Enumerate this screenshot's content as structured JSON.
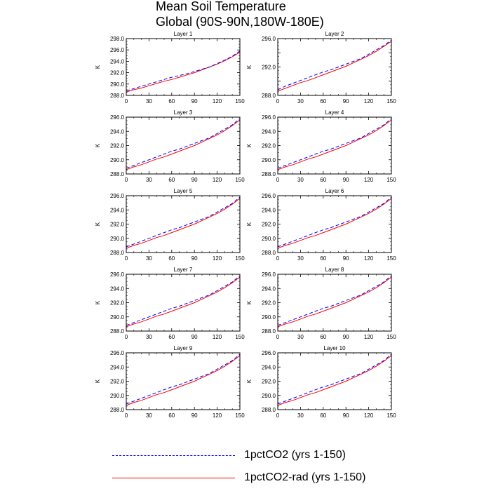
{
  "title": {
    "line1": "Mean Soil Temperature",
    "line2": "Global (90S-90N,180W-180E)"
  },
  "legend": [
    {
      "label": "1pctCO2 (yrs 1-150)",
      "color": "#0000ff",
      "style": "dashed"
    },
    {
      "label": "1pctCO2-rad (yrs 1-150)",
      "color": "#ff0000",
      "style": "solid"
    }
  ],
  "chart_data": [
    {
      "type": "line",
      "title": "Layer 1",
      "ylabel": "K",
      "xlim": [
        0,
        150
      ],
      "ylim": [
        288.0,
        298.0
      ],
      "xticks": [
        "0",
        "30",
        "60",
        "90",
        "120",
        "150"
      ],
      "yticks": [
        "288.0",
        "290.0",
        "292.0",
        "294.0",
        "296.0",
        "298.0"
      ],
      "x": [
        0,
        10,
        20,
        30,
        40,
        50,
        60,
        70,
        80,
        90,
        100,
        110,
        120,
        130,
        140,
        150
      ],
      "series": [
        {
          "name": "1pctCO2 (yrs 1-150)",
          "values": [
            288.8,
            289.2,
            289.6,
            290.0,
            290.4,
            290.8,
            291.2,
            291.5,
            291.8,
            292.2,
            292.6,
            293.0,
            293.6,
            294.2,
            294.9,
            295.8
          ]
        },
        {
          "name": "1pctCO2-rad (yrs 1-150)",
          "values": [
            288.6,
            289.0,
            289.3,
            289.7,
            290.1,
            290.5,
            290.8,
            291.2,
            291.6,
            292.0,
            292.5,
            293.0,
            293.5,
            294.1,
            294.8,
            295.6
          ]
        }
      ]
    },
    {
      "type": "line",
      "title": "Layer 2",
      "ylabel": "K",
      "xlim": [
        0,
        150
      ],
      "ylim": [
        288.0,
        296.0
      ],
      "xticks": [
        "0",
        "30",
        "60",
        "90",
        "120",
        "150"
      ],
      "yticks": [
        "288.0",
        "292.0",
        "296.0"
      ],
      "minor_yticks": [
        290.0,
        294.0
      ],
      "x": [
        0,
        10,
        20,
        30,
        40,
        50,
        60,
        70,
        80,
        90,
        100,
        110,
        120,
        130,
        140,
        150
      ],
      "series": [
        {
          "name": "1pctCO2 (yrs 1-150)",
          "values": [
            288.8,
            289.3,
            289.7,
            290.1,
            290.5,
            290.9,
            291.3,
            291.6,
            292.0,
            292.4,
            292.8,
            293.2,
            293.8,
            294.4,
            295.0,
            295.8
          ]
        },
        {
          "name": "1pctCO2-rad (yrs 1-150)",
          "values": [
            288.6,
            289.0,
            289.4,
            289.8,
            290.1,
            290.5,
            290.9,
            291.3,
            291.7,
            292.1,
            292.6,
            293.1,
            293.6,
            294.2,
            294.9,
            295.6
          ]
        }
      ]
    },
    {
      "type": "line",
      "title": "Layer 3",
      "ylabel": "K",
      "xlim": [
        0,
        150
      ],
      "ylim": [
        288.0,
        296.0
      ],
      "xticks": [
        "0",
        "30",
        "60",
        "90",
        "120",
        "150"
      ],
      "yticks": [
        "288.0",
        "290.0",
        "292.0",
        "294.0",
        "296.0"
      ],
      "x": [
        0,
        10,
        20,
        30,
        40,
        50,
        60,
        70,
        80,
        90,
        100,
        110,
        120,
        130,
        140,
        150
      ],
      "series": [
        {
          "name": "1pctCO2 (yrs 1-150)",
          "values": [
            288.8,
            289.2,
            289.6,
            290.0,
            290.4,
            290.8,
            291.2,
            291.5,
            291.9,
            292.3,
            292.7,
            293.1,
            293.7,
            294.3,
            294.9,
            295.8
          ]
        },
        {
          "name": "1pctCO2-rad (yrs 1-150)",
          "values": [
            288.6,
            289.0,
            289.3,
            289.7,
            290.1,
            290.4,
            290.8,
            291.2,
            291.6,
            292.0,
            292.5,
            293.0,
            293.5,
            294.1,
            294.8,
            295.6
          ]
        }
      ]
    },
    {
      "type": "line",
      "title": "Layer 4",
      "ylabel": "K",
      "xlim": [
        0,
        150
      ],
      "ylim": [
        288.0,
        296.0
      ],
      "xticks": [
        "0",
        "30",
        "60",
        "90",
        "120",
        "150"
      ],
      "yticks": [
        "288.0",
        "290.0",
        "292.0",
        "294.0",
        "296.0"
      ],
      "x": [
        0,
        10,
        20,
        30,
        40,
        50,
        60,
        70,
        80,
        90,
        100,
        110,
        120,
        130,
        140,
        150
      ],
      "series": [
        {
          "name": "1pctCO2 (yrs 1-150)",
          "values": [
            288.8,
            289.2,
            289.6,
            290.0,
            290.4,
            290.8,
            291.2,
            291.5,
            291.9,
            292.3,
            292.7,
            293.1,
            293.7,
            294.3,
            294.9,
            295.8
          ]
        },
        {
          "name": "1pctCO2-rad (yrs 1-150)",
          "values": [
            288.6,
            289.0,
            289.3,
            289.7,
            290.1,
            290.4,
            290.8,
            291.2,
            291.6,
            292.0,
            292.5,
            293.0,
            293.5,
            294.1,
            294.8,
            295.6
          ]
        }
      ]
    },
    {
      "type": "line",
      "title": "Layer 5",
      "ylabel": "K",
      "xlim": [
        0,
        150
      ],
      "ylim": [
        288.0,
        296.0
      ],
      "xticks": [
        "0",
        "30",
        "60",
        "90",
        "120",
        "150"
      ],
      "yticks": [
        "288.0",
        "290.0",
        "292.0",
        "294.0",
        "296.0"
      ],
      "x": [
        0,
        10,
        20,
        30,
        40,
        50,
        60,
        70,
        80,
        90,
        100,
        110,
        120,
        130,
        140,
        150
      ],
      "series": [
        {
          "name": "1pctCO2 (yrs 1-150)",
          "values": [
            288.8,
            289.2,
            289.6,
            290.0,
            290.4,
            290.8,
            291.2,
            291.5,
            291.9,
            292.3,
            292.7,
            293.1,
            293.7,
            294.3,
            294.9,
            295.8
          ]
        },
        {
          "name": "1pctCO2-rad (yrs 1-150)",
          "values": [
            288.6,
            289.0,
            289.3,
            289.7,
            290.1,
            290.4,
            290.8,
            291.2,
            291.6,
            292.0,
            292.5,
            293.0,
            293.5,
            294.1,
            294.8,
            295.6
          ]
        }
      ]
    },
    {
      "type": "line",
      "title": "Layer 6",
      "ylabel": "K",
      "xlim": [
        0,
        150
      ],
      "ylim": [
        288.0,
        296.0
      ],
      "xticks": [
        "0",
        "30",
        "60",
        "90",
        "120",
        "150"
      ],
      "yticks": [
        "288.0",
        "290.0",
        "292.0",
        "294.0",
        "296.0"
      ],
      "x": [
        0,
        10,
        20,
        30,
        40,
        50,
        60,
        70,
        80,
        90,
        100,
        110,
        120,
        130,
        140,
        150
      ],
      "series": [
        {
          "name": "1pctCO2 (yrs 1-150)",
          "values": [
            288.8,
            289.2,
            289.6,
            290.0,
            290.4,
            290.8,
            291.2,
            291.5,
            291.9,
            292.3,
            292.7,
            293.1,
            293.7,
            294.3,
            294.9,
            295.8
          ]
        },
        {
          "name": "1pctCO2-rad (yrs 1-150)",
          "values": [
            288.6,
            289.0,
            289.3,
            289.7,
            290.1,
            290.4,
            290.8,
            291.2,
            291.6,
            292.0,
            292.5,
            293.0,
            293.5,
            294.1,
            294.8,
            295.6
          ]
        }
      ]
    },
    {
      "type": "line",
      "title": "Layer 7",
      "ylabel": "K",
      "xlim": [
        0,
        150
      ],
      "ylim": [
        288.0,
        296.0
      ],
      "xticks": [
        "0",
        "30",
        "60",
        "90",
        "120",
        "150"
      ],
      "yticks": [
        "288.0",
        "290.0",
        "292.0",
        "294.0",
        "296.0"
      ],
      "x": [
        0,
        10,
        20,
        30,
        40,
        50,
        60,
        70,
        80,
        90,
        100,
        110,
        120,
        130,
        140,
        150
      ],
      "series": [
        {
          "name": "1pctCO2 (yrs 1-150)",
          "values": [
            288.8,
            289.2,
            289.6,
            290.0,
            290.4,
            290.8,
            291.2,
            291.5,
            291.9,
            292.3,
            292.7,
            293.1,
            293.7,
            294.3,
            294.9,
            295.8
          ]
        },
        {
          "name": "1pctCO2-rad (yrs 1-150)",
          "values": [
            288.6,
            289.0,
            289.3,
            289.7,
            290.1,
            290.4,
            290.8,
            291.2,
            291.6,
            292.0,
            292.5,
            293.0,
            293.5,
            294.1,
            294.8,
            295.6
          ]
        }
      ]
    },
    {
      "type": "line",
      "title": "Layer 8",
      "ylabel": "K",
      "xlim": [
        0,
        150
      ],
      "ylim": [
        288.0,
        296.0
      ],
      "xticks": [
        "0",
        "30",
        "60",
        "90",
        "120",
        "150"
      ],
      "yticks": [
        "288.0",
        "290.0",
        "292.0",
        "294.0",
        "296.0"
      ],
      "x": [
        0,
        10,
        20,
        30,
        40,
        50,
        60,
        70,
        80,
        90,
        100,
        110,
        120,
        130,
        140,
        150
      ],
      "series": [
        {
          "name": "1pctCO2 (yrs 1-150)",
          "values": [
            288.8,
            289.2,
            289.6,
            290.0,
            290.4,
            290.8,
            291.2,
            291.5,
            291.9,
            292.3,
            292.7,
            293.1,
            293.7,
            294.3,
            294.9,
            295.8
          ]
        },
        {
          "name": "1pctCO2-rad (yrs 1-150)",
          "values": [
            288.6,
            289.0,
            289.3,
            289.7,
            290.1,
            290.4,
            290.8,
            291.2,
            291.6,
            292.0,
            292.5,
            293.0,
            293.5,
            294.1,
            294.8,
            295.6
          ]
        }
      ]
    },
    {
      "type": "line",
      "title": "Layer 9",
      "ylabel": "K",
      "xlim": [
        0,
        150
      ],
      "ylim": [
        288.0,
        296.0
      ],
      "xticks": [
        "0",
        "30",
        "60",
        "90",
        "120",
        "150"
      ],
      "yticks": [
        "288.0",
        "290.0",
        "292.0",
        "294.0",
        "296.0"
      ],
      "x": [
        0,
        10,
        20,
        30,
        40,
        50,
        60,
        70,
        80,
        90,
        100,
        110,
        120,
        130,
        140,
        150
      ],
      "series": [
        {
          "name": "1pctCO2 (yrs 1-150)",
          "values": [
            288.8,
            289.2,
            289.6,
            290.0,
            290.4,
            290.8,
            291.2,
            291.5,
            291.9,
            292.3,
            292.7,
            293.1,
            293.7,
            294.3,
            294.9,
            295.8
          ]
        },
        {
          "name": "1pctCO2-rad (yrs 1-150)",
          "values": [
            288.6,
            289.0,
            289.3,
            289.7,
            290.1,
            290.4,
            290.8,
            291.2,
            291.6,
            292.0,
            292.5,
            293.0,
            293.5,
            294.1,
            294.8,
            295.6
          ]
        }
      ]
    },
    {
      "type": "line",
      "title": "Layer 10",
      "ylabel": "K",
      "xlim": [
        0,
        150
      ],
      "ylim": [
        288.0,
        296.0
      ],
      "xticks": [
        "0",
        "30",
        "60",
        "90",
        "120",
        "150"
      ],
      "yticks": [
        "288.0",
        "290.0",
        "292.0",
        "294.0",
        "296.0"
      ],
      "x": [
        0,
        10,
        20,
        30,
        40,
        50,
        60,
        70,
        80,
        90,
        100,
        110,
        120,
        130,
        140,
        150
      ],
      "series": [
        {
          "name": "1pctCO2 (yrs 1-150)",
          "values": [
            288.8,
            289.2,
            289.6,
            290.0,
            290.4,
            290.8,
            291.2,
            291.5,
            291.9,
            292.3,
            292.7,
            293.1,
            293.7,
            294.3,
            294.9,
            295.8
          ]
        },
        {
          "name": "1pctCO2-rad (yrs 1-150)",
          "values": [
            288.6,
            289.0,
            289.3,
            289.7,
            290.1,
            290.4,
            290.8,
            291.2,
            291.6,
            292.0,
            292.5,
            293.0,
            293.5,
            294.1,
            294.8,
            295.6
          ]
        }
      ]
    }
  ]
}
